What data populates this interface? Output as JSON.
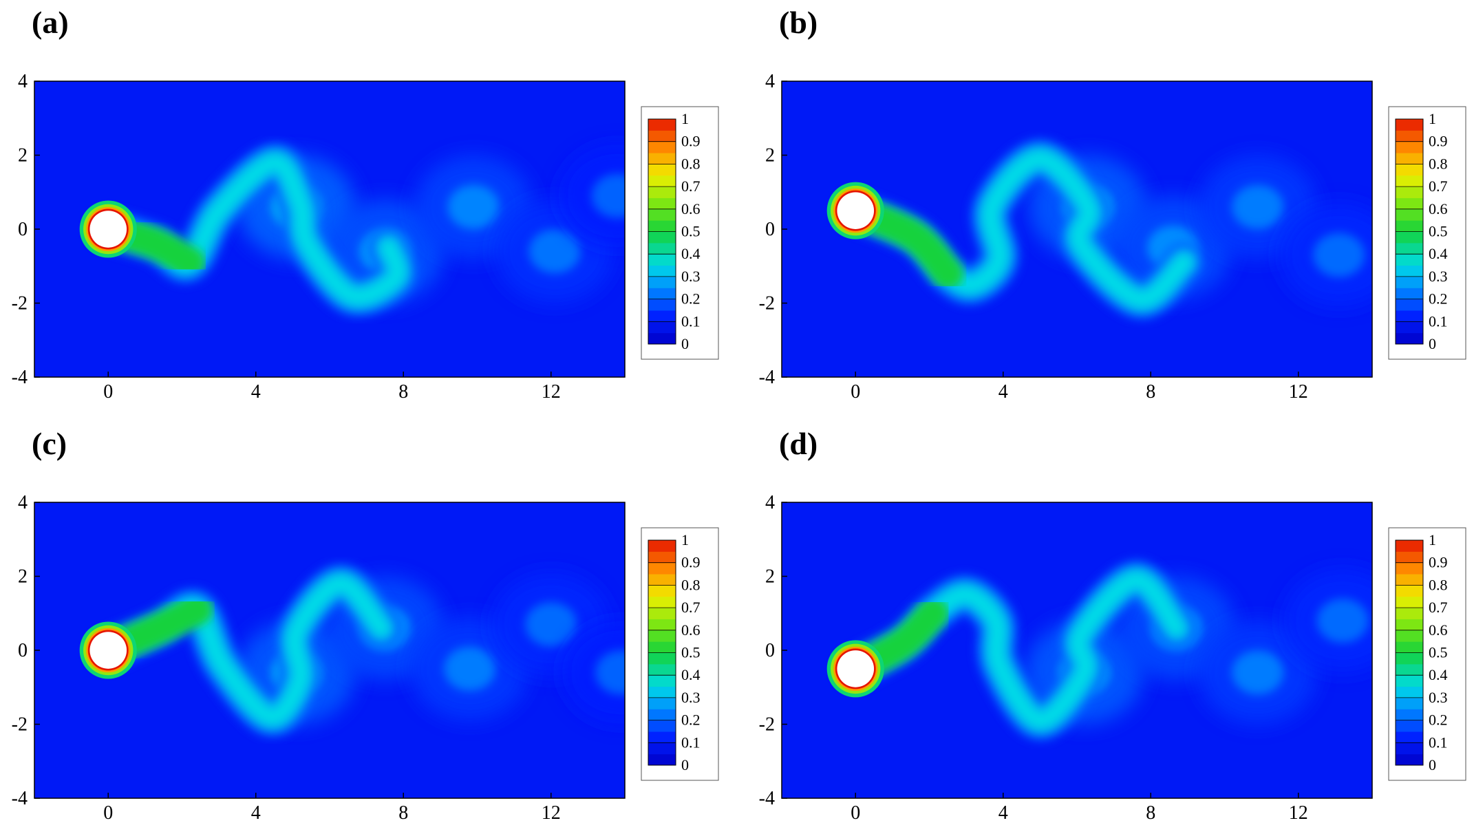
{
  "chart_data": [
    {
      "type": "heatmap",
      "panel_label": "(a)",
      "xlim": [
        -2,
        14
      ],
      "ylim": [
        -4,
        4
      ],
      "x_ticks": [
        0,
        4,
        8,
        12
      ],
      "y_ticks": [
        -4,
        -2,
        0,
        2,
        4
      ],
      "colorbar_ticks": [
        1,
        0.9,
        0.8,
        0.7,
        0.6,
        0.5,
        0.4,
        0.3,
        0.2,
        0.1,
        0
      ],
      "colorbar_range": [
        0,
        1
      ],
      "cylinder": {
        "x": 0,
        "y": 0,
        "r": 0.5
      },
      "wake_path": [
        [
          0,
          0
        ],
        [
          1.3,
          -0.4
        ],
        [
          2.2,
          -0.9
        ],
        [
          3.0,
          0.5
        ],
        [
          4.5,
          1.8
        ],
        [
          5.2,
          0.7
        ],
        [
          5.4,
          -0.4
        ],
        [
          6.6,
          -1.8
        ],
        [
          7.8,
          -1.3
        ],
        [
          7.6,
          -0.5
        ]
      ],
      "vortex_cores": [
        {
          "x": 5.1,
          "y": 0.6,
          "v": 0.28
        },
        {
          "x": 7.5,
          "y": -0.6,
          "v": 0.26
        },
        {
          "x": 9.9,
          "y": 0.6,
          "v": 0.24
        },
        {
          "x": 12.1,
          "y": -0.6,
          "v": 0.22
        },
        {
          "x": 13.8,
          "y": 0.9,
          "v": 0.2
        }
      ]
    },
    {
      "type": "heatmap",
      "panel_label": "(b)",
      "xlim": [
        -2,
        14
      ],
      "ylim": [
        -4,
        4
      ],
      "x_ticks": [
        0,
        4,
        8,
        12
      ],
      "y_ticks": [
        -4,
        -2,
        0,
        2,
        4
      ],
      "colorbar_ticks": [
        1,
        0.9,
        0.8,
        0.7,
        0.6,
        0.5,
        0.4,
        0.3,
        0.2,
        0.1,
        0
      ],
      "colorbar_range": [
        0,
        1
      ],
      "cylinder": {
        "x": 0,
        "y": 0.5,
        "r": 0.5
      },
      "wake_path": [
        [
          0,
          0.5
        ],
        [
          1.6,
          -0.2
        ],
        [
          2.5,
          -1.2
        ],
        [
          3.2,
          -1.5
        ],
        [
          3.9,
          -0.8
        ],
        [
          3.7,
          0.6
        ],
        [
          5.0,
          1.9
        ],
        [
          6.3,
          0.6
        ],
        [
          6.1,
          -0.4
        ],
        [
          7.7,
          -1.9
        ],
        [
          8.9,
          -0.9
        ]
      ],
      "vortex_cores": [
        {
          "x": 6.3,
          "y": 0.6,
          "v": 0.27
        },
        {
          "x": 8.6,
          "y": -0.5,
          "v": 0.25
        },
        {
          "x": 10.9,
          "y": 0.6,
          "v": 0.23
        },
        {
          "x": 13.1,
          "y": -0.7,
          "v": 0.21
        }
      ]
    },
    {
      "type": "heatmap",
      "panel_label": "(c)",
      "xlim": [
        -2,
        14
      ],
      "ylim": [
        -4,
        4
      ],
      "x_ticks": [
        0,
        4,
        8,
        12
      ],
      "y_ticks": [
        -4,
        -2,
        0,
        2,
        4
      ],
      "colorbar_ticks": [
        1,
        0.9,
        0.8,
        0.7,
        0.6,
        0.5,
        0.4,
        0.3,
        0.2,
        0.1,
        0
      ],
      "colorbar_range": [
        0,
        1
      ],
      "cylinder": {
        "x": 0,
        "y": 0,
        "r": 0.5
      },
      "wake_path": [
        [
          0,
          0
        ],
        [
          1.4,
          0.6
        ],
        [
          2.4,
          1.1
        ],
        [
          3.1,
          -0.4
        ],
        [
          4.4,
          -1.8
        ],
        [
          5.2,
          -0.8
        ],
        [
          5.1,
          0.5
        ],
        [
          6.3,
          1.8
        ],
        [
          7.4,
          0.6
        ]
      ],
      "vortex_cores": [
        {
          "x": 5.1,
          "y": -0.6,
          "v": 0.27
        },
        {
          "x": 7.5,
          "y": 0.6,
          "v": 0.25
        },
        {
          "x": 9.8,
          "y": -0.5,
          "v": 0.23
        },
        {
          "x": 12.0,
          "y": 0.7,
          "v": 0.21
        },
        {
          "x": 13.9,
          "y": -0.6,
          "v": 0.2
        }
      ]
    },
    {
      "type": "heatmap",
      "panel_label": "(d)",
      "xlim": [
        -2,
        14
      ],
      "ylim": [
        -4,
        4
      ],
      "x_ticks": [
        0,
        4,
        8,
        12
      ],
      "y_ticks": [
        -4,
        -2,
        0,
        2,
        4
      ],
      "colorbar_ticks": [
        1,
        0.9,
        0.8,
        0.7,
        0.6,
        0.5,
        0.4,
        0.3,
        0.2,
        0.1,
        0
      ],
      "colorbar_range": [
        0,
        1
      ],
      "cylinder": {
        "x": 0,
        "y": -0.5,
        "r": 0.5
      },
      "wake_path": [
        [
          0,
          -0.5
        ],
        [
          1.3,
          0.2
        ],
        [
          2.1,
          1.0
        ],
        [
          3.0,
          1.5
        ],
        [
          3.8,
          0.8
        ],
        [
          3.9,
          -0.4
        ],
        [
          5.0,
          -1.9
        ],
        [
          6.2,
          -0.6
        ],
        [
          6.1,
          0.4
        ],
        [
          7.6,
          1.9
        ],
        [
          8.7,
          0.6
        ]
      ],
      "vortex_cores": [
        {
          "x": 6.2,
          "y": -0.6,
          "v": 0.27
        },
        {
          "x": 8.7,
          "y": 0.6,
          "v": 0.25
        },
        {
          "x": 10.9,
          "y": -0.6,
          "v": 0.23
        },
        {
          "x": 13.2,
          "y": 0.8,
          "v": 0.21
        }
      ]
    }
  ]
}
